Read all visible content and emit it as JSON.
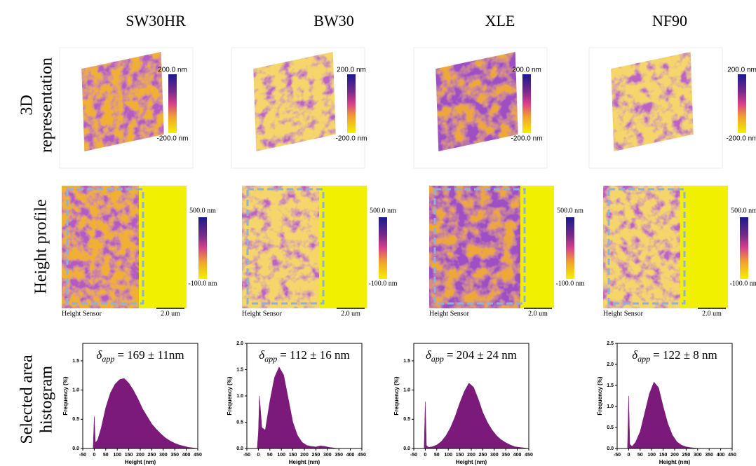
{
  "rows": [
    [
      "3D",
      "representation"
    ],
    [
      "Height profile"
    ],
    [
      "Selected area",
      "histogram"
    ]
  ],
  "columns": [
    {
      "title": "SW30HR",
      "colorbar_3d": {
        "max_label": "200.0 nm",
        "min_label": "-200.0 nm"
      },
      "height_profile": {
        "max_label": "500.0 nm",
        "min_label": "-100.0 nm",
        "channel": "Height Sensor",
        "scale_bar": "2.0 um"
      }
    },
    {
      "title": "BW30",
      "colorbar_3d": {
        "max_label": "200.0 nm",
        "min_label": "-200.0 nm"
      },
      "height_profile": {
        "max_label": "500.0 nm",
        "min_label": "-100.0 nm",
        "channel": "Height Sensor",
        "scale_bar": "2.0 um"
      }
    },
    {
      "title": "XLE",
      "colorbar_3d": {
        "max_label": "200.0 nm",
        "min_label": "-200.0 nm"
      },
      "height_profile": {
        "max_label": "500.0 nm",
        "min_label": "-100.0 nm",
        "channel": "Height Sensor",
        "scale_bar": "2.0 um"
      }
    },
    {
      "title": "NF90",
      "colorbar_3d": {
        "max_label": "200.0 nm",
        "min_label": "-200.0 nm"
      },
      "height_profile": {
        "max_label": "500.0 nm",
        "min_label": "-100.0 nm",
        "channel": "Height Sensor",
        "scale_bar": "2.0 um"
      }
    }
  ],
  "chart_data": [
    {
      "type": "area",
      "color": "#7b1a7b",
      "xlabel": "Height (nm)",
      "ylabel": "Frequency (%)",
      "annotation": {
        "symbol": "δ",
        "subscript": "app",
        "text": "= 169 ± 11nm"
      },
      "x": [
        -20,
        -5,
        0,
        5,
        15,
        30,
        50,
        70,
        90,
        110,
        130,
        150,
        170,
        190,
        210,
        230,
        250,
        270,
        290,
        310,
        330,
        350,
        370,
        390,
        410,
        430,
        450
      ],
      "values": [
        0,
        0,
        0.55,
        0.1,
        0.15,
        0.35,
        0.7,
        0.95,
        1.1,
        1.18,
        1.2,
        1.12,
        1.0,
        0.85,
        0.68,
        0.55,
        0.42,
        0.33,
        0.25,
        0.18,
        0.13,
        0.09,
        0.06,
        0.04,
        0.02,
        0.01,
        0
      ],
      "xlim": [
        -50,
        450
      ],
      "xticks": [
        -50,
        0,
        50,
        100,
        150,
        200,
        250,
        300,
        350,
        400,
        450
      ],
      "ylim": [
        0,
        1.8
      ],
      "yticks": [
        {
          "value": 0,
          "label": "0.0"
        },
        {
          "value": 0.5,
          "label": "0.5"
        },
        {
          "value": 1,
          "label": "1.0"
        },
        {
          "value": 1.5,
          "label": "1.5"
        }
      ]
    },
    {
      "type": "area",
      "color": "#7b1a7b",
      "xlabel": "Height (nm)",
      "ylabel": "Frequency (%)",
      "annotation": {
        "symbol": "δ",
        "subscript": "app",
        "text": "= 112 ± 16 nm"
      },
      "x": [
        -20,
        -5,
        0,
        5,
        15,
        30,
        50,
        70,
        90,
        110,
        130,
        150,
        170,
        190,
        210,
        230,
        250,
        270,
        290,
        310,
        330,
        350,
        370,
        390,
        410,
        430,
        450
      ],
      "values": [
        0,
        0,
        0.3,
        1.0,
        0.4,
        0.35,
        0.9,
        1.35,
        1.55,
        1.4,
        0.95,
        0.5,
        0.25,
        0.12,
        0.06,
        0.04,
        0.03,
        0.05,
        0.04,
        0.02,
        0.01,
        0,
        0,
        0,
        0,
        0,
        0
      ],
      "xlim": [
        -50,
        450
      ],
      "xticks": [
        -50,
        0,
        50,
        100,
        150,
        200,
        250,
        300,
        350,
        400,
        450
      ],
      "ylim": [
        0,
        2.0
      ],
      "yticks": [
        {
          "value": 0,
          "label": "0.0"
        },
        {
          "value": 0.5,
          "label": "0.5"
        },
        {
          "value": 1,
          "label": "1.0"
        },
        {
          "value": 1.5,
          "label": "1.5"
        },
        {
          "value": 2,
          "label": "2.0"
        }
      ]
    },
    {
      "type": "area",
      "color": "#7b1a7b",
      "xlabel": "Height (nm)",
      "ylabel": "Frequency (%)",
      "annotation": {
        "symbol": "δ",
        "subscript": "app",
        "text": "= 204 ± 24 nm"
      },
      "x": [
        -20,
        -5,
        0,
        5,
        15,
        30,
        50,
        70,
        90,
        110,
        130,
        150,
        170,
        190,
        210,
        230,
        250,
        270,
        290,
        310,
        330,
        350,
        370,
        390,
        410,
        430,
        450
      ],
      "values": [
        0,
        0,
        0.8,
        0.05,
        0.02,
        0.03,
        0.06,
        0.12,
        0.22,
        0.36,
        0.55,
        0.78,
        0.98,
        1.12,
        1.05,
        0.85,
        0.62,
        0.45,
        0.32,
        0.22,
        0.15,
        0.1,
        0.06,
        0.03,
        0.02,
        0.01,
        0
      ],
      "xlim": [
        -50,
        450
      ],
      "xticks": [
        -50,
        0,
        50,
        100,
        150,
        200,
        250,
        300,
        350,
        400,
        450
      ],
      "ylim": [
        0,
        1.8
      ],
      "yticks": [
        {
          "value": 0,
          "label": "0.0"
        },
        {
          "value": 0.5,
          "label": "0.5"
        },
        {
          "value": 1,
          "label": "1.0"
        },
        {
          "value": 1.5,
          "label": "1.5"
        }
      ]
    },
    {
      "type": "area",
      "color": "#7b1a7b",
      "xlabel": "Height (nm)",
      "ylabel": "Frequency (%)",
      "annotation": {
        "symbol": "δ",
        "subscript": "app",
        "text": "= 122 ± 8 nm"
      },
      "x": [
        -20,
        -5,
        0,
        5,
        15,
        30,
        50,
        70,
        90,
        110,
        130,
        150,
        170,
        190,
        210,
        230,
        250,
        270,
        290,
        310,
        330,
        350,
        370,
        390,
        410,
        430,
        450
      ],
      "values": [
        0,
        0,
        1.25,
        0.1,
        0.05,
        0.15,
        0.4,
        0.85,
        1.3,
        1.58,
        1.45,
        1.0,
        0.6,
        0.32,
        0.16,
        0.08,
        0.04,
        0.02,
        0.01,
        0,
        0,
        0,
        0,
        0,
        0,
        0,
        0
      ],
      "xlim": [
        -50,
        450
      ],
      "xticks": [
        -50,
        0,
        50,
        100,
        150,
        200,
        250,
        300,
        350,
        400,
        450
      ],
      "ylim": [
        0,
        2.5
      ],
      "yticks": [
        {
          "value": 0,
          "label": "0.0"
        },
        {
          "value": 0.5,
          "label": "0.5"
        },
        {
          "value": 1,
          "label": "1.0"
        },
        {
          "value": 1.5,
          "label": "1.5"
        },
        {
          "value": 2,
          "label": "2.0"
        },
        {
          "value": 2.5,
          "label": "2.5"
        }
      ]
    }
  ]
}
